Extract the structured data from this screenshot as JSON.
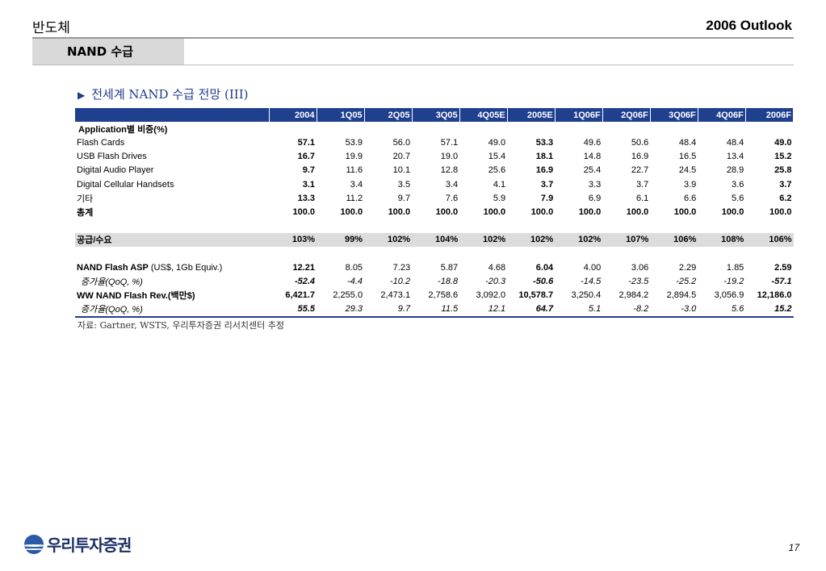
{
  "header": {
    "left": "반도체",
    "right": "2006 Outlook"
  },
  "section_tab": "NAND 수급",
  "table_title": "전세계 NAND 수급 전망 (III)",
  "table": {
    "columns": [
      "2004",
      "1Q05",
      "2Q05",
      "3Q05",
      "4Q05E",
      "2005E",
      "1Q06F",
      "2Q06F",
      "3Q06F",
      "4Q06F",
      "2006F"
    ],
    "section_label": "Application별 비중(%)",
    "app_rows": [
      {
        "label": "Flash Cards",
        "values": [
          "57.1",
          "53.9",
          "56.0",
          "57.1",
          "49.0",
          "53.3",
          "49.6",
          "50.6",
          "48.4",
          "48.4",
          "49.0"
        ]
      },
      {
        "label": "USB Flash Drives",
        "values": [
          "16.7",
          "19.9",
          "20.7",
          "19.0",
          "15.4",
          "18.1",
          "14.8",
          "16.9",
          "16.5",
          "13.4",
          "15.2"
        ]
      },
      {
        "label": "Digital Audio Player",
        "values": [
          "9.7",
          "11.6",
          "10.1",
          "12.8",
          "25.6",
          "16.9",
          "25.4",
          "22.7",
          "24.5",
          "28.9",
          "25.8"
        ]
      },
      {
        "label": "Digital Cellular Handsets",
        "values": [
          "3.1",
          "3.4",
          "3.5",
          "3.4",
          "4.1",
          "3.7",
          "3.3",
          "3.7",
          "3.9",
          "3.6",
          "3.7"
        ]
      },
      {
        "label": "기타",
        "values": [
          "13.3",
          "11.2",
          "9.7",
          "7.6",
          "5.9",
          "7.9",
          "6.9",
          "6.1",
          "6.6",
          "5.6",
          "6.2"
        ]
      }
    ],
    "total_row": {
      "label": "총계",
      "values": [
        "100.0",
        "100.0",
        "100.0",
        "100.0",
        "100.0",
        "100.0",
        "100.0",
        "100.0",
        "100.0",
        "100.0",
        "100.0"
      ]
    },
    "supply_row": {
      "label": "공급/수요",
      "values": [
        "103%",
        "99%",
        "102%",
        "104%",
        "102%",
        "102%",
        "102%",
        "107%",
        "106%",
        "108%",
        "106%"
      ]
    },
    "asp_row": {
      "label_bold": "NAND Flash ASP",
      "label_rest": " (US$, 1Gb Equiv.)",
      "values": [
        "12.21",
        "8.05",
        "7.23",
        "5.87",
        "4.68",
        "6.04",
        "4.00",
        "3.06",
        "2.29",
        "1.85",
        "2.59"
      ]
    },
    "asp_growth_row": {
      "label": "증가율(QoQ, %)",
      "values": [
        "-52.4",
        "-4.4",
        "-10.2",
        "-18.8",
        "-20.3",
        "-50.6",
        "-14.5",
        "-23.5",
        "-25.2",
        "-19.2",
        "-57.1"
      ]
    },
    "rev_row": {
      "label": "WW NAND Flash  Rev.(백만$)",
      "values": [
        "6,421.7",
        "2,255.0",
        "2,473.1",
        "2,758.6",
        "3,092.0",
        "10,578.7",
        "3,250.4",
        "2,984.2",
        "2,894.5",
        "3,056.9",
        "12,186.0"
      ]
    },
    "rev_growth_row": {
      "label": "증가율(QoQ, %)",
      "values": [
        "55.5",
        "29.3",
        "9.7",
        "11.5",
        "12.1",
        "64.7",
        "5.1",
        "-8.2",
        "-3.0",
        "5.6",
        "15.2"
      ]
    }
  },
  "source": "자료: Gartner, WSTS, 우리투자증권 리서치센터 추정",
  "footer": {
    "logo_text": "우리투자증권",
    "page_number": "17"
  }
}
